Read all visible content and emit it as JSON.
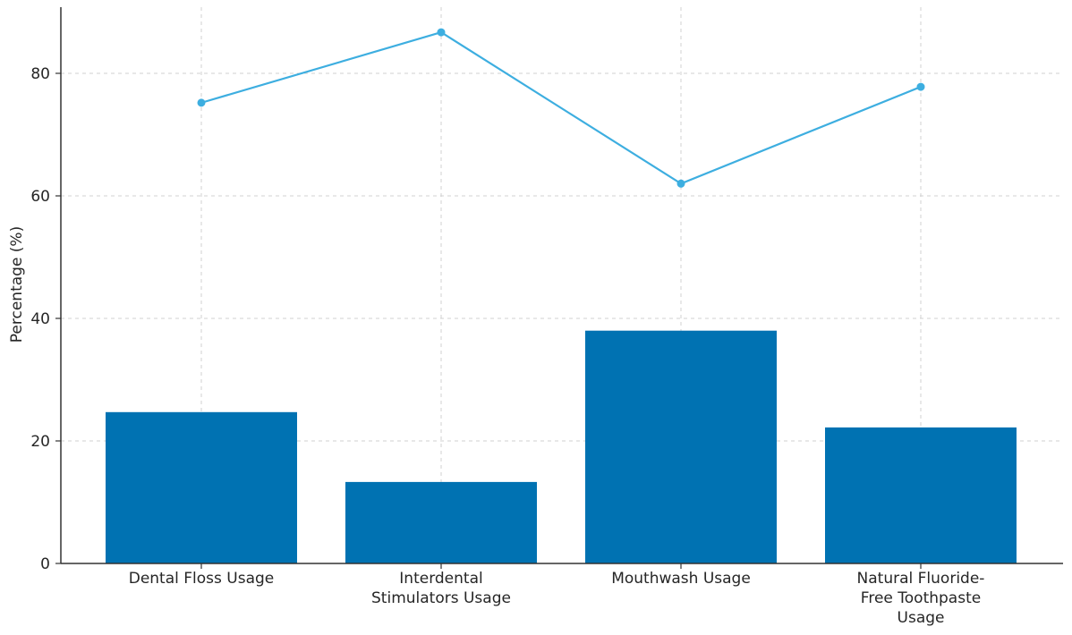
{
  "chart_data": {
    "type": "bar",
    "title": "",
    "xlabel": "",
    "ylabel": "Percentage (%)",
    "categories": [
      [
        "Dental Floss Usage"
      ],
      [
        "Interdental",
        "Stimulators Usage"
      ],
      [
        "Mouthwash Usage"
      ],
      [
        "Natural Fluoride-",
        "Free Toothpaste",
        "Usage"
      ]
    ],
    "series": [
      {
        "type": "bar",
        "values": [
          24.7,
          13.3,
          38.0,
          22.2
        ],
        "color": "#0072b2"
      },
      {
        "type": "line",
        "values": [
          75.2,
          86.7,
          62.0,
          77.8
        ],
        "color": "#3daee0"
      }
    ],
    "ylim": [
      0,
      90
    ],
    "yticks": [
      0,
      20,
      40,
      60,
      80
    ],
    "grid": true,
    "legend": "none"
  }
}
